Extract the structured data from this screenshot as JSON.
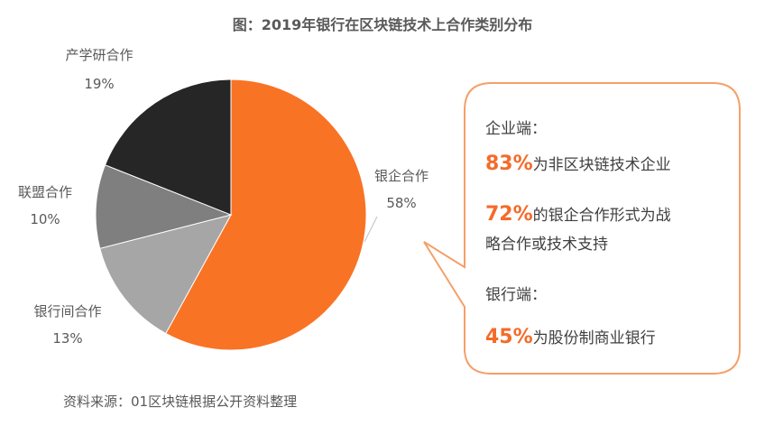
{
  "title": "图：2019年银行在区块链技术上合作类别分布",
  "source": "资料来源：01区块链根据公开资料整理",
  "chart_data": {
    "type": "pie",
    "title": "图：2019年银行在区块链技术上合作类别分布",
    "slices": [
      {
        "label": "银企合作",
        "value": 58,
        "value_label": "58%",
        "color": "#f97325"
      },
      {
        "label": "银行间合作",
        "value": 13,
        "value_label": "13%",
        "color": "#a6a6a6"
      },
      {
        "label": "联盟合作",
        "value": 10,
        "value_label": "10%",
        "color": "#7f7f7f"
      },
      {
        "label": "产学研合作",
        "value": 19,
        "value_label": "19%",
        "color": "#262626"
      }
    ]
  },
  "callout": {
    "enterprise_heading": "企业端：",
    "enterprise_stat1_value": "83%",
    "enterprise_stat1_text": "为非区块链技术企业",
    "enterprise_stat2_value": "72%",
    "enterprise_stat2_text_line1": "的银企合作形式为战",
    "enterprise_stat2_text_line2": "略合作或技术支持",
    "bank_heading": "银行端：",
    "bank_stat_value": "45%",
    "bank_stat_text": "为股份制商业银行"
  },
  "colors": {
    "accent": "#f46b2a",
    "callout_border": "#f4a06a"
  }
}
